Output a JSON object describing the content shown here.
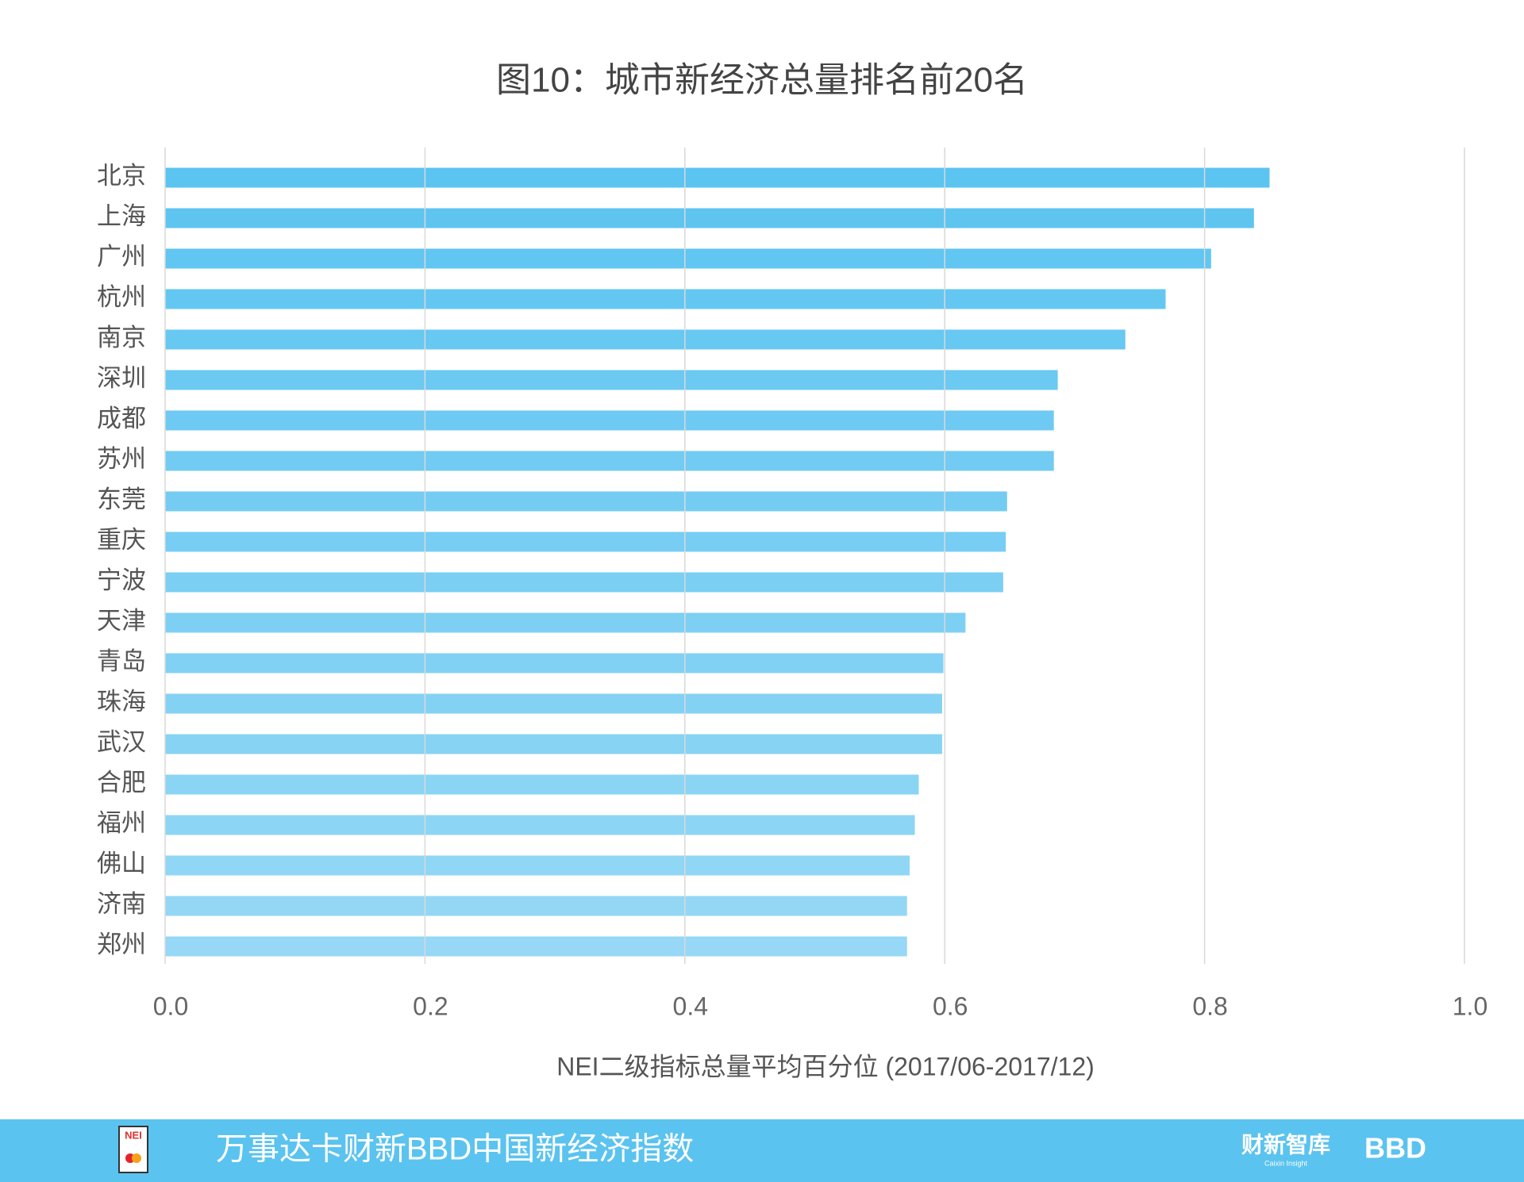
{
  "chart_data": {
    "type": "barh",
    "title": "图10：城市新经济总量排名前20名",
    "x_label": "NEI二级指标总量平均百分位 (2017/06-2017/12)",
    "categories": [
      "北京",
      "上海",
      "广州",
      "杭州",
      "南京",
      "深圳",
      "成都",
      "苏州",
      "东莞",
      "重庆",
      "宁波",
      "天津",
      "青岛",
      "珠海",
      "武汉",
      "合肥",
      "福州",
      "佛山",
      "济南",
      "郑州"
    ],
    "values": [
      0.85,
      0.838,
      0.805,
      0.77,
      0.739,
      0.687,
      0.684,
      0.684,
      0.648,
      0.647,
      0.645,
      0.616,
      0.599,
      0.598,
      0.598,
      0.58,
      0.577,
      0.573,
      0.571,
      0.571
    ],
    "color_top": "#5bc4f1",
    "color_bottom": "#96d8f5",
    "xlim": [
      0,
      1
    ],
    "xticks": [
      {
        "value": 0,
        "label": "0.0"
      },
      {
        "value": 0.2,
        "label": "0.2"
      },
      {
        "value": 0.4,
        "label": "0.4"
      },
      {
        "value": 0.6,
        "label": "0.6"
      },
      {
        "value": 0.8,
        "label": "0.8"
      },
      {
        "value": 1,
        "label": "1.0"
      }
    ],
    "grid": true
  },
  "footer": {
    "title": "万事达卡财新BBD中国新经济指数",
    "logo_caixin": "财新智库",
    "logo_caixin_sub": "Caixin Insight",
    "logo_bbd": "BBD",
    "logo_nei": "NEI",
    "color": "#5bc3ef"
  }
}
